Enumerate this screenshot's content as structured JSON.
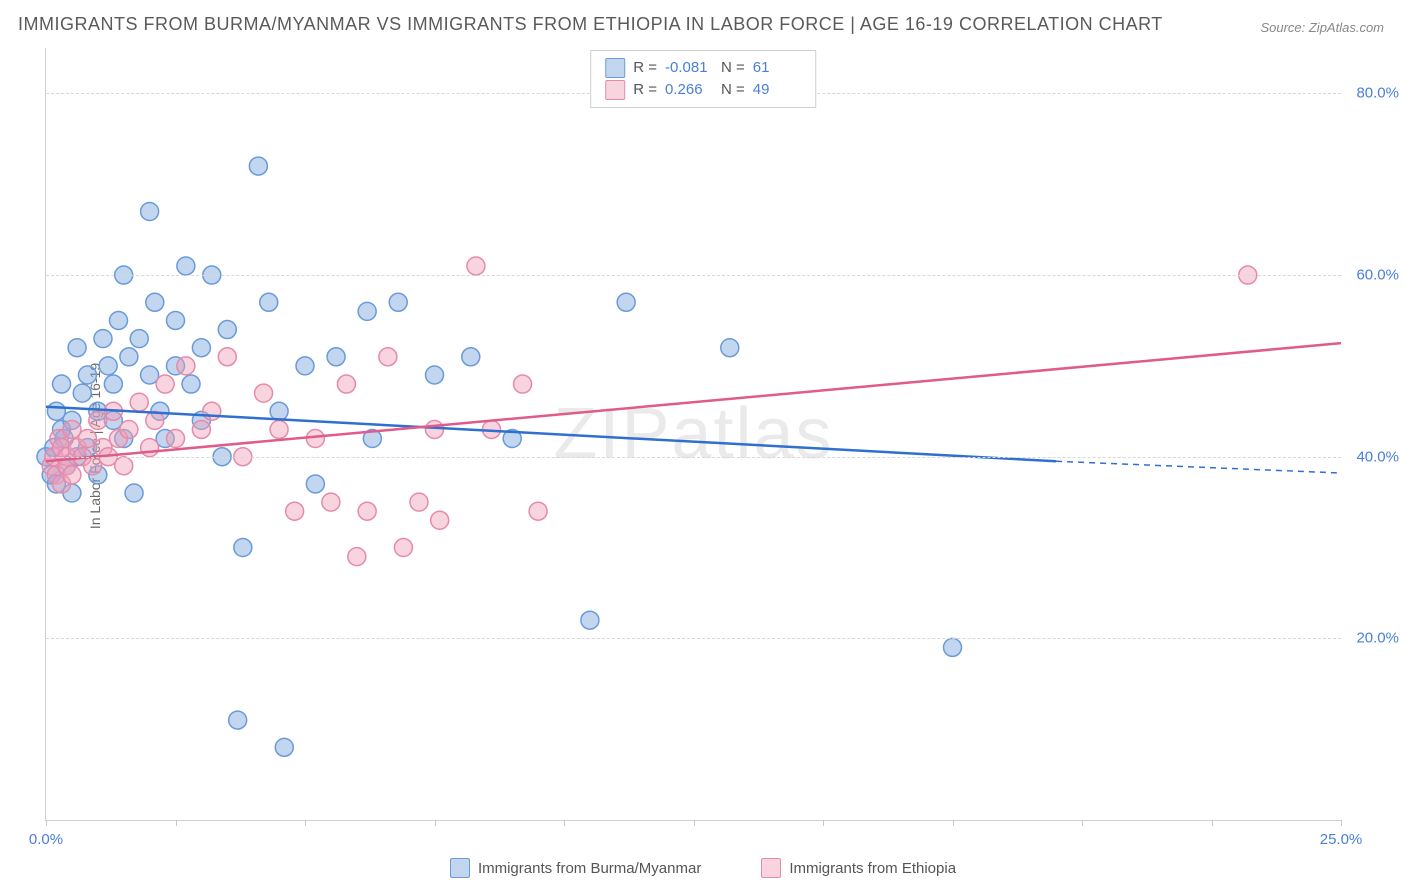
{
  "title": "IMMIGRANTS FROM BURMA/MYANMAR VS IMMIGRANTS FROM ETHIOPIA IN LABOR FORCE | AGE 16-19 CORRELATION CHART",
  "source_label": "Source: ZipAtlas.com",
  "watermark": "ZIPatlas",
  "ylabel": "In Labor Force | Age 16-19",
  "chart": {
    "type": "scatter",
    "xlim": [
      0,
      25
    ],
    "ylim": [
      0,
      85
    ],
    "xtick_positions": [
      0,
      2.5,
      5,
      7.5,
      10,
      12.5,
      15,
      17.5,
      20,
      22.5,
      25
    ],
    "xtick_labels_shown": {
      "0": "0.0%",
      "25": "25.0%"
    },
    "ytick_positions": [
      20,
      40,
      60,
      80
    ],
    "ytick_labels": [
      "20.0%",
      "40.0%",
      "60.0%",
      "80.0%"
    ],
    "grid_color": "#d8d8d8",
    "axis_color": "#d0d0d0",
    "background_color": "#ffffff",
    "marker_radius": 9,
    "marker_stroke_width": 1.5,
    "line_width": 2.5
  },
  "series": [
    {
      "name": "Immigrants from Burma/Myanmar",
      "fill_color": "rgba(120,165,220,0.45)",
      "stroke_color": "#6a9bd8",
      "line_color": "#2f6fd0",
      "R": "-0.081",
      "N": "61",
      "trend": {
        "x1": 0,
        "y1": 45.5,
        "x2": 19.5,
        "y2": 39.5,
        "extrap_x2": 25,
        "extrap_y2": 38.2
      },
      "points": [
        [
          0.0,
          40
        ],
        [
          0.1,
          38
        ],
        [
          0.15,
          41
        ],
        [
          0.2,
          45
        ],
        [
          0.2,
          37
        ],
        [
          0.3,
          43
        ],
        [
          0.3,
          48
        ],
        [
          0.35,
          42
        ],
        [
          0.4,
          39
        ],
        [
          0.5,
          36
        ],
        [
          0.5,
          44
        ],
        [
          0.6,
          52
        ],
        [
          0.6,
          40
        ],
        [
          0.7,
          47
        ],
        [
          0.8,
          49
        ],
        [
          0.8,
          41
        ],
        [
          1.0,
          45
        ],
        [
          1.0,
          38
        ],
        [
          1.1,
          53
        ],
        [
          1.2,
          50
        ],
        [
          1.3,
          44
        ],
        [
          1.3,
          48
        ],
        [
          1.4,
          55
        ],
        [
          1.5,
          60
        ],
        [
          1.5,
          42
        ],
        [
          1.6,
          51
        ],
        [
          1.7,
          36
        ],
        [
          1.8,
          53
        ],
        [
          2.0,
          49
        ],
        [
          2.0,
          67
        ],
        [
          2.1,
          57
        ],
        [
          2.2,
          45
        ],
        [
          2.3,
          42
        ],
        [
          2.5,
          55
        ],
        [
          2.5,
          50
        ],
        [
          2.7,
          61
        ],
        [
          2.8,
          48
        ],
        [
          3.0,
          52
        ],
        [
          3.0,
          44
        ],
        [
          3.2,
          60
        ],
        [
          3.4,
          40
        ],
        [
          3.5,
          54
        ],
        [
          3.7,
          11
        ],
        [
          3.8,
          30
        ],
        [
          4.1,
          72
        ],
        [
          4.3,
          57
        ],
        [
          4.5,
          45
        ],
        [
          4.6,
          8
        ],
        [
          5.0,
          50
        ],
        [
          5.2,
          37
        ],
        [
          5.6,
          51
        ],
        [
          6.2,
          56
        ],
        [
          6.3,
          42
        ],
        [
          6.8,
          57
        ],
        [
          7.5,
          49
        ],
        [
          8.2,
          51
        ],
        [
          9.0,
          42
        ],
        [
          10.5,
          22
        ],
        [
          11.2,
          57
        ],
        [
          13.2,
          52
        ],
        [
          17.5,
          19
        ]
      ]
    },
    {
      "name": "Immigrants from Ethiopia",
      "fill_color": "rgba(240,160,185,0.45)",
      "stroke_color": "#e68aac",
      "line_color": "#e05a8a",
      "R": "0.266",
      "N": "49",
      "trend": {
        "x1": 0,
        "y1": 39.5,
        "x2": 25,
        "y2": 52.5
      },
      "points": [
        [
          0.1,
          39
        ],
        [
          0.15,
          40
        ],
        [
          0.2,
          38
        ],
        [
          0.25,
          42
        ],
        [
          0.3,
          37
        ],
        [
          0.3,
          41
        ],
        [
          0.4,
          40
        ],
        [
          0.4,
          39
        ],
        [
          0.5,
          43
        ],
        [
          0.5,
          38
        ],
        [
          0.6,
          41
        ],
        [
          0.7,
          40
        ],
        [
          0.8,
          42
        ],
        [
          0.9,
          39
        ],
        [
          1.0,
          44
        ],
        [
          1.1,
          41
        ],
        [
          1.2,
          40
        ],
        [
          1.3,
          45
        ],
        [
          1.4,
          42
        ],
        [
          1.5,
          39
        ],
        [
          1.6,
          43
        ],
        [
          1.8,
          46
        ],
        [
          2.0,
          41
        ],
        [
          2.1,
          44
        ],
        [
          2.3,
          48
        ],
        [
          2.5,
          42
        ],
        [
          2.7,
          50
        ],
        [
          3.0,
          43
        ],
        [
          3.2,
          45
        ],
        [
          3.5,
          51
        ],
        [
          3.8,
          40
        ],
        [
          4.2,
          47
        ],
        [
          4.5,
          43
        ],
        [
          4.8,
          34
        ],
        [
          5.2,
          42
        ],
        [
          5.5,
          35
        ],
        [
          5.8,
          48
        ],
        [
          6.0,
          29
        ],
        [
          6.2,
          34
        ],
        [
          6.6,
          51
        ],
        [
          6.9,
          30
        ],
        [
          7.2,
          35
        ],
        [
          7.5,
          43
        ],
        [
          7.6,
          33
        ],
        [
          8.3,
          61
        ],
        [
          8.6,
          43
        ],
        [
          9.2,
          48
        ],
        [
          9.5,
          34
        ],
        [
          23.2,
          60
        ]
      ]
    }
  ],
  "legend_bottom": [
    {
      "label": "Immigrants from Burma/Myanmar",
      "fill": "rgba(120,165,220,0.45)",
      "stroke": "#6a9bd8"
    },
    {
      "label": "Immigrants from Ethiopia",
      "fill": "rgba(240,160,185,0.45)",
      "stroke": "#e68aac"
    }
  ]
}
